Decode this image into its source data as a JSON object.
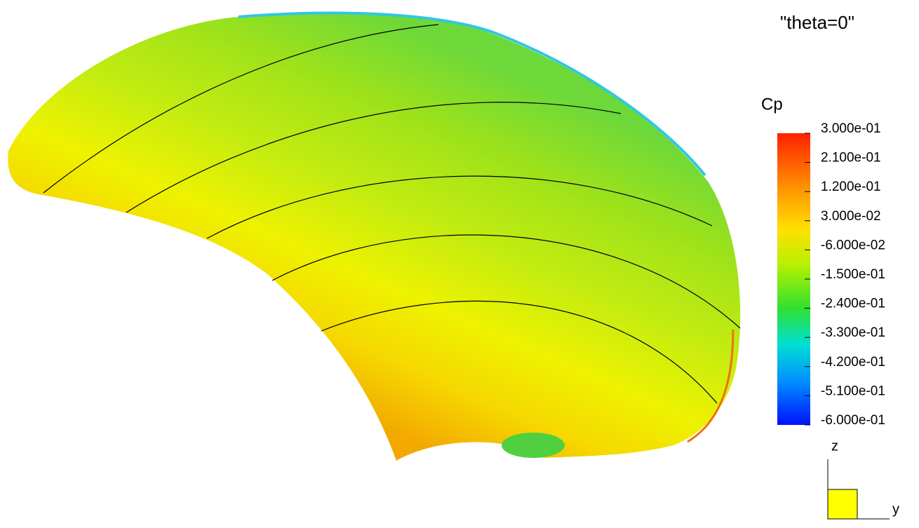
{
  "chart_data": {
    "type": "contour",
    "title": "\"theta=0\"",
    "colorbar_label": "Cp",
    "clim": [
      -0.6,
      0.3
    ],
    "colorbar_ticks": [
      {
        "value": 0.3,
        "label": "3.000e-01"
      },
      {
        "value": 0.21,
        "label": "2.100e-01"
      },
      {
        "value": 0.12,
        "label": "1.200e-01"
      },
      {
        "value": 0.03,
        "label": "3.000e-02"
      },
      {
        "value": -0.06,
        "label": "-6.000e-02"
      },
      {
        "value": -0.15,
        "label": "-1.500e-01"
      },
      {
        "value": -0.24,
        "label": "-2.400e-01"
      },
      {
        "value": -0.33,
        "label": "-3.300e-01"
      },
      {
        "value": -0.42,
        "label": "-4.200e-01"
      },
      {
        "value": -0.51,
        "label": "-5.100e-01"
      },
      {
        "value": -0.6,
        "label": "-6.000e-01"
      }
    ],
    "axis_labels": {
      "vertical": "z",
      "horizontal": "y"
    }
  }
}
